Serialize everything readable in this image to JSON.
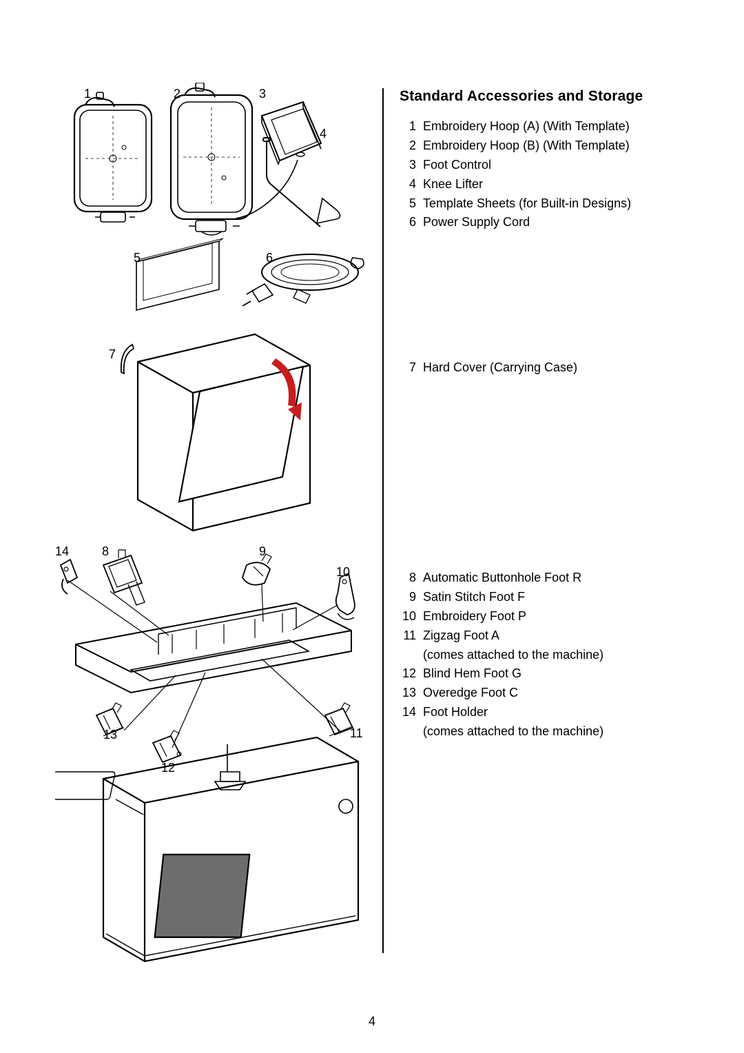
{
  "page_number": "4",
  "title": "Standard Accessories and Storage",
  "group1": {
    "items": [
      {
        "n": "1",
        "label": "Embroidery Hoop (A) (With Template)"
      },
      {
        "n": "2",
        "label": "Embroidery Hoop (B) (With Template)"
      },
      {
        "n": "3",
        "label": "Foot Control"
      },
      {
        "n": "4",
        "label": "Knee Lifter"
      },
      {
        "n": "5",
        "label": "Template Sheets (for Built-in Designs)"
      },
      {
        "n": "6",
        "label": "Power Supply Cord"
      }
    ]
  },
  "group2": {
    "items": [
      {
        "n": "7",
        "label": "Hard Cover (Carrying Case)"
      }
    ]
  },
  "group3": {
    "items": [
      {
        "n": "8",
        "label": "Automatic Buttonhole Foot R"
      },
      {
        "n": "9",
        "label": "Satin Stitch Foot F"
      },
      {
        "n": "10",
        "label": "Embroidery Foot P"
      },
      {
        "n": "11",
        "label": "Zigzag Foot A",
        "sub": "(comes attached to the machine)"
      },
      {
        "n": "12",
        "label": "Blind Hem Foot G"
      },
      {
        "n": "13",
        "label": "Overedge Foot C"
      },
      {
        "n": "14",
        "label": "Foot Holder",
        "sub": "(comes attached to the machine)"
      }
    ]
  },
  "callouts": {
    "c1": "1",
    "c2": "2",
    "c3": "3",
    "c4": "4",
    "c5": "5",
    "c6": "6",
    "c7": "7",
    "c8": "8",
    "c9": "9",
    "c10": "10",
    "c11": "11",
    "c12": "12",
    "c13": "13",
    "c14": "14"
  },
  "colors": {
    "stroke": "#000000",
    "thin": "#000000",
    "arrow": "#c91d1d",
    "bg": "#ffffff",
    "shade": "#6d6d6d"
  },
  "style": {
    "stroke_width_heavy": 2.2,
    "stroke_width_med": 1.6,
    "stroke_width_thin": 1.0,
    "dash": "4 4",
    "callout_fontsize": 18
  }
}
